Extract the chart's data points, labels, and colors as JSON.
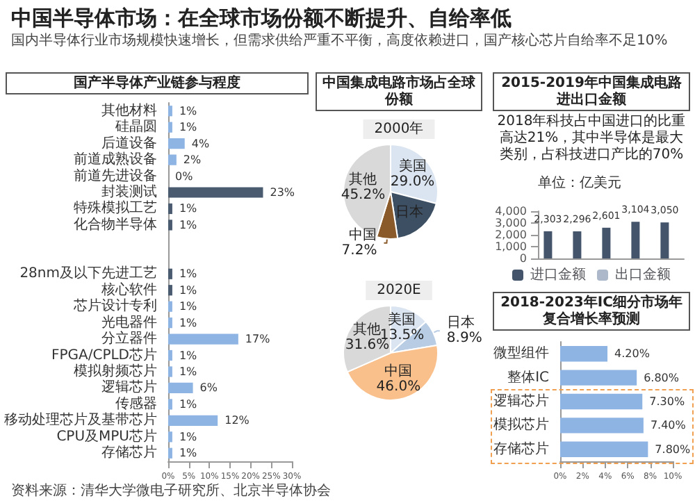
{
  "chart_data": [
    {
      "type": "other",
      "title": "中国半导体市场：在全球市场份额不断提升、自给率低",
      "subtitle": "国内半导体行业市场规模快速增长，但需求供给严重不平衡，高度依赖进口，国产核心芯片自给率不足10%",
      "annotations": [
        "资料来源：清华大学微电子研究所、北京半导体协会"
      ]
    },
    {
      "type": "bar",
      "orientation": "horizontal",
      "title": "国产半导体产业链参与程度",
      "categories": [
        "其他材料",
        "硅晶圆",
        "后道设备",
        "前道成熟设备",
        "前道先进设备",
        "封装测试",
        "特殊模拟工艺",
        "化合物半导体",
        null,
        null,
        "28nm及以下先进工艺",
        "核心软件",
        "芯片设计专利",
        "光电器件",
        "分立器件",
        "FPGA/CPLD芯片",
        "模拟射频芯片",
        "逻辑芯片",
        "传感器",
        "移动处理芯片及基带芯片",
        "CPU及MPU芯片",
        "存储芯片"
      ],
      "values": [
        1,
        1,
        4,
        2,
        0,
        23,
        1,
        1,
        null,
        null,
        1,
        1,
        1,
        1,
        17,
        1,
        1,
        6,
        1,
        12,
        1,
        1
      ],
      "value_labels": [
        "1%",
        "1%",
        "4%",
        "2%",
        "0%",
        "23%",
        "1%",
        "1%",
        null,
        null,
        "1%",
        "1%",
        "1%",
        "1%",
        "17%",
        "1%",
        "1%",
        "6%",
        "1%",
        "12%",
        "1%",
        "1%"
      ],
      "colors": [
        "#8eb4e3",
        "#8eb4e3",
        "#8eb4e3",
        "#8eb4e3",
        "#8eb4e3",
        "#4a5b70",
        "#4a5b70",
        "#4a5b70",
        "#4a5b70",
        "#4a5b70",
        "#4a5b70",
        "#4a5b70",
        "#8eb4e3",
        "#8eb4e3",
        "#8eb4e3",
        "#8eb4e3",
        "#8eb4e3",
        "#8eb4e3",
        "#8eb4e3",
        "#8eb4e3",
        "#8eb4e3",
        "#8eb4e3"
      ],
      "xlim": [
        0,
        30
      ],
      "xticks": [
        {
          "value": 0,
          "label": "0%"
        },
        {
          "value": 5,
          "label": "5%"
        },
        {
          "value": 10,
          "label": "10%"
        },
        {
          "value": 15,
          "label": "15%"
        },
        {
          "value": 20,
          "label": "20%"
        },
        {
          "value": 25,
          "label": "25%"
        },
        {
          "value": 30,
          "label": "30%"
        }
      ],
      "grid": false
    },
    {
      "type": "pie",
      "title": "中国集成电路市场占全球份额",
      "subtitle": "2000年",
      "categories": [
        "美国",
        "日本",
        "中国",
        "其他"
      ],
      "values": [
        29.0,
        18.6,
        7.2,
        45.2
      ],
      "value_labels": [
        "29.0%",
        null,
        "7.2%",
        "45.2%"
      ],
      "colors": [
        "#dbe5f1",
        "#3d4f63",
        "#8b5a2b",
        "#d9d9d9"
      ]
    },
    {
      "type": "pie",
      "subtitle": "2020E",
      "categories": [
        "美国",
        "日本",
        "中国",
        "其他"
      ],
      "values": [
        13.5,
        8.9,
        46.0,
        31.6
      ],
      "value_labels": [
        "13.5%",
        "8.9%",
        "46.0%",
        "31.6%"
      ],
      "colors": [
        "#dbe5f1",
        "#b8cce4",
        "#f9c08c",
        "#d9d9d9"
      ]
    },
    {
      "type": "bar",
      "title": "2015-2019年中国集成电路进出口金额",
      "annotations": [
        "2018年科技占中国进口的比重高达21%，其中半导体是最大类别，占科技进口产比的70%"
      ],
      "ylabel": "单位：亿美元",
      "categories": [
        null,
        null,
        null,
        null,
        null
      ],
      "series": [
        {
          "name": "进口金额",
          "color": "#44546a",
          "values": [
            2303,
            2296,
            2601,
            3104,
            3050
          ],
          "value_labels": [
            "2,303",
            "2,296",
            "2,601",
            "3,104",
            "3,050"
          ]
        },
        {
          "name": "出口金额",
          "color": "#adb9ca",
          "values": [
            null,
            null,
            null,
            null,
            null
          ]
        }
      ],
      "ylim": [
        0,
        4000
      ],
      "yticks": [
        {
          "value": 0,
          "label": "0"
        },
        {
          "value": 1000,
          "label": "1,000"
        },
        {
          "value": 2000,
          "label": "2,000"
        },
        {
          "value": 3000,
          "label": "3,000"
        },
        {
          "value": 4000,
          "label": "4,000"
        }
      ],
      "legend": "bottom",
      "grid": false
    },
    {
      "type": "bar",
      "orientation": "horizontal",
      "title": "2018-2023年IC细分市场年复合增长率预测",
      "categories": [
        "微型组件",
        "整体IC",
        "逻辑芯片",
        "模拟芯片",
        "存储芯片"
      ],
      "values": [
        4.2,
        6.8,
        7.3,
        7.4,
        7.8
      ],
      "value_labels": [
        "4.20%",
        "6.80%",
        "7.30%",
        "7.40%",
        "7.80%"
      ],
      "color": "#8eb4e3",
      "xlim": [
        0,
        10
      ],
      "xticks": [
        {
          "value": 0,
          "label": "0%"
        },
        {
          "value": 2,
          "label": "2%"
        },
        {
          "value": 4,
          "label": "4%"
        },
        {
          "value": 6,
          "label": "6%"
        },
        {
          "value": 8,
          "label": "8%"
        },
        {
          "value": 10,
          "label": "10%"
        }
      ],
      "grid": false
    }
  ]
}
